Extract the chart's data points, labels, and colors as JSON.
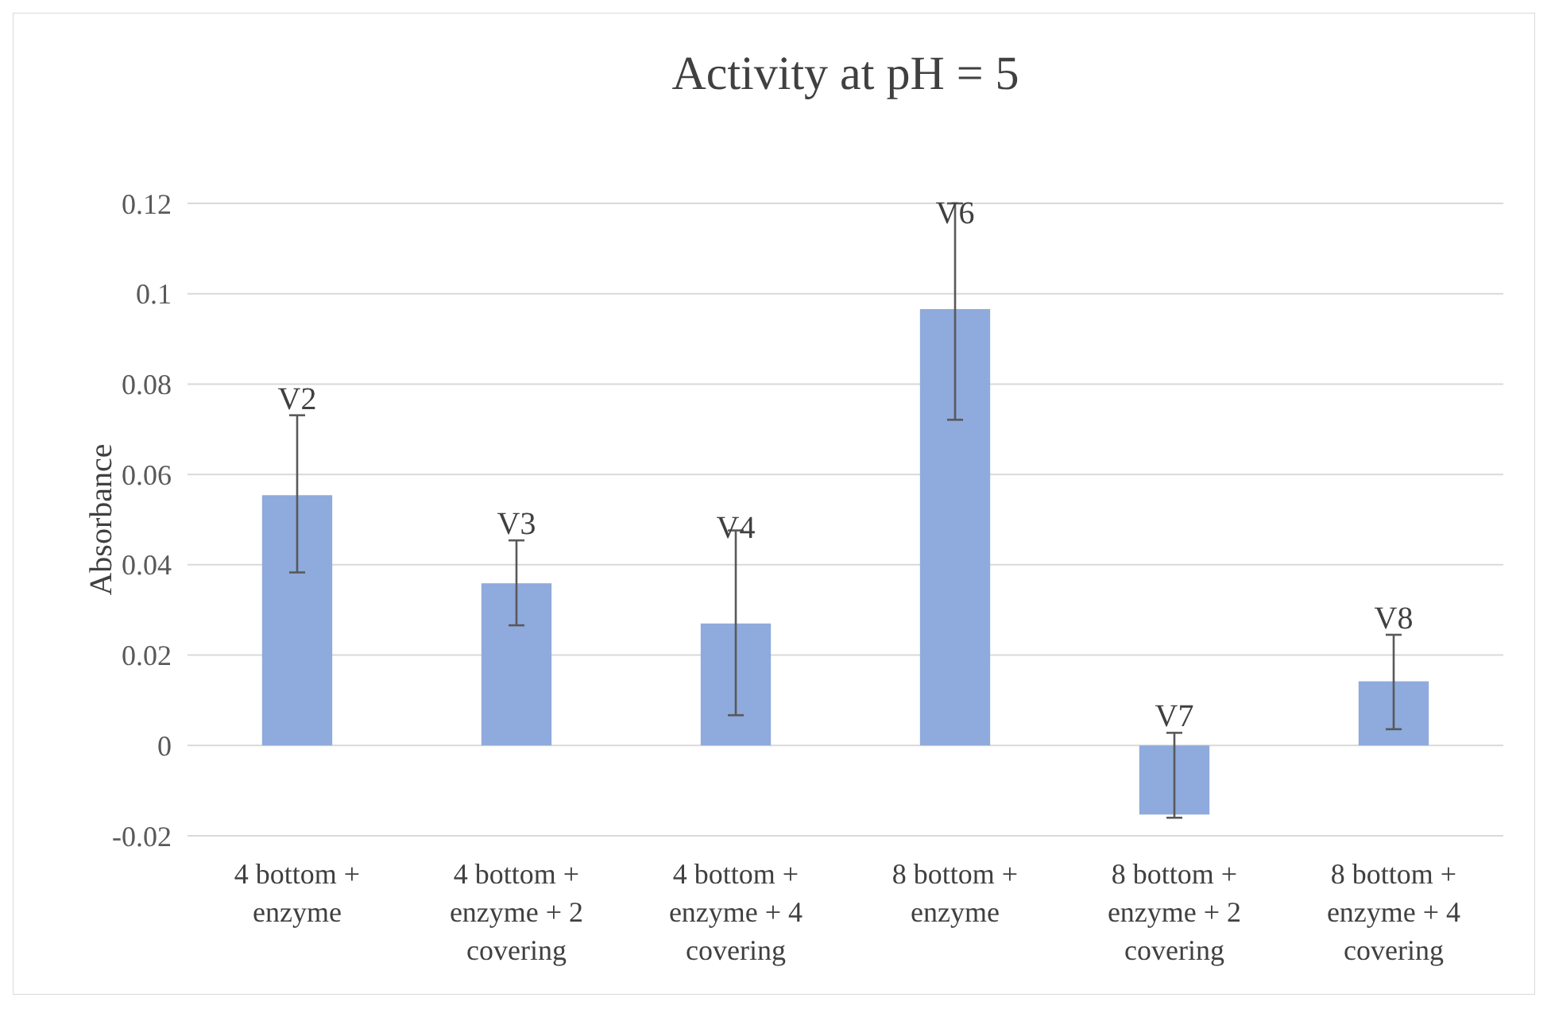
{
  "chart_data": {
    "type": "bar",
    "title": "Activity at pH = 5",
    "ylabel": "Absorbance",
    "categories": [
      "4 bottom + enzyme",
      "4 bottom + enzyme + 2 covering",
      "4 bottom + enzyme + 4 covering",
      "8 bottom + enzyme",
      "8 bottom + enzyme + 2 covering",
      "8 bottom + enzyme + 4 covering"
    ],
    "values": [
      0.0554,
      0.0359,
      0.027,
      0.0966,
      -0.0153,
      0.0142
    ],
    "errors": [
      [
        0.0383,
        0.0731
      ],
      [
        0.0266,
        0.0454
      ],
      [
        0.0067,
        0.0476
      ],
      [
        0.0721,
        0.12
      ],
      [
        -0.016,
        0.0028
      ],
      [
        0.0036,
        0.0245
      ]
    ],
    "value_labels": [
      "V2",
      "V3",
      "V4",
      "V6",
      "V7",
      "V8"
    ],
    "color": "#8faadc",
    "ylim": [
      -0.02,
      0.12
    ],
    "yticks": [
      -0.02,
      0,
      0.02,
      0.04,
      0.06,
      0.08,
      0.1,
      0.12
    ],
    "grid": "y"
  }
}
